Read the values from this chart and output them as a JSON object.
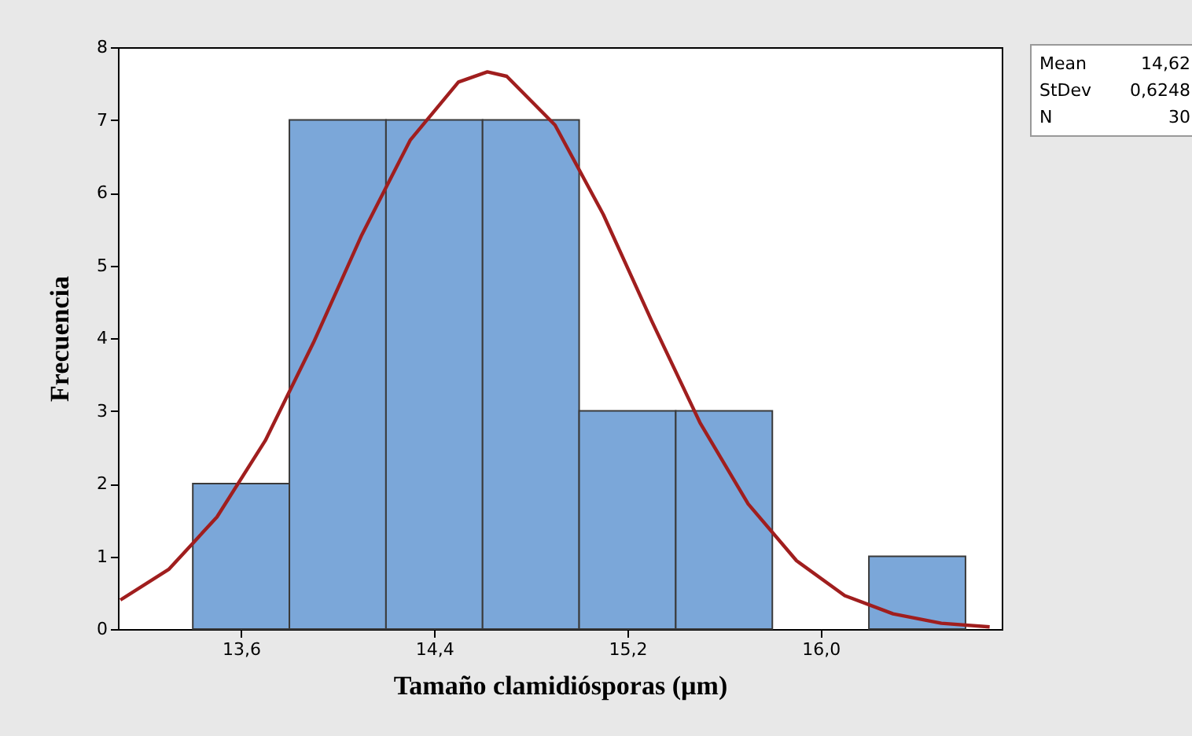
{
  "chart_data": {
    "type": "histogram",
    "xlabel": "Tamaño clamidiósporas (µm)",
    "ylabel": "Frecuencia",
    "bins": [
      13.4,
      13.8,
      14.2,
      14.6,
      15.0,
      15.4,
      15.8,
      16.2,
      16.6
    ],
    "values": [
      2,
      7,
      7,
      7,
      3,
      3,
      0,
      1
    ],
    "color": "#7ba7d9",
    "series": [
      {
        "type": "line",
        "color": "#a01e1e",
        "x": [
          13.1,
          13.3,
          13.5,
          13.7,
          13.9,
          14.1,
          14.3,
          14.5,
          14.62,
          14.7,
          14.9,
          15.1,
          15.3,
          15.5,
          15.7,
          15.9,
          16.1,
          16.3,
          16.5,
          16.7
        ],
        "values": [
          0.4,
          0.82,
          1.54,
          2.59,
          3.94,
          5.42,
          6.72,
          7.52,
          7.66,
          7.6,
          6.93,
          5.7,
          4.24,
          2.84,
          1.72,
          0.94,
          0.46,
          0.21,
          0.08,
          0.03
        ]
      }
    ],
    "xlim": [
      13.09,
      16.75
    ],
    "xticks": [
      {
        "value": 13.6,
        "label": "13,6"
      },
      {
        "value": 14.4,
        "label": "14,4"
      },
      {
        "value": 15.2,
        "label": "15,2"
      },
      {
        "value": 16.0,
        "label": "16,0"
      }
    ],
    "ylim": [
      0,
      8
    ],
    "yticks": [
      0,
      1,
      2,
      3,
      4,
      5,
      6,
      7,
      8
    ],
    "grid": false,
    "annotations": [
      "Mean 14,62",
      "StDev 0,6248",
      "N 30"
    ]
  }
}
